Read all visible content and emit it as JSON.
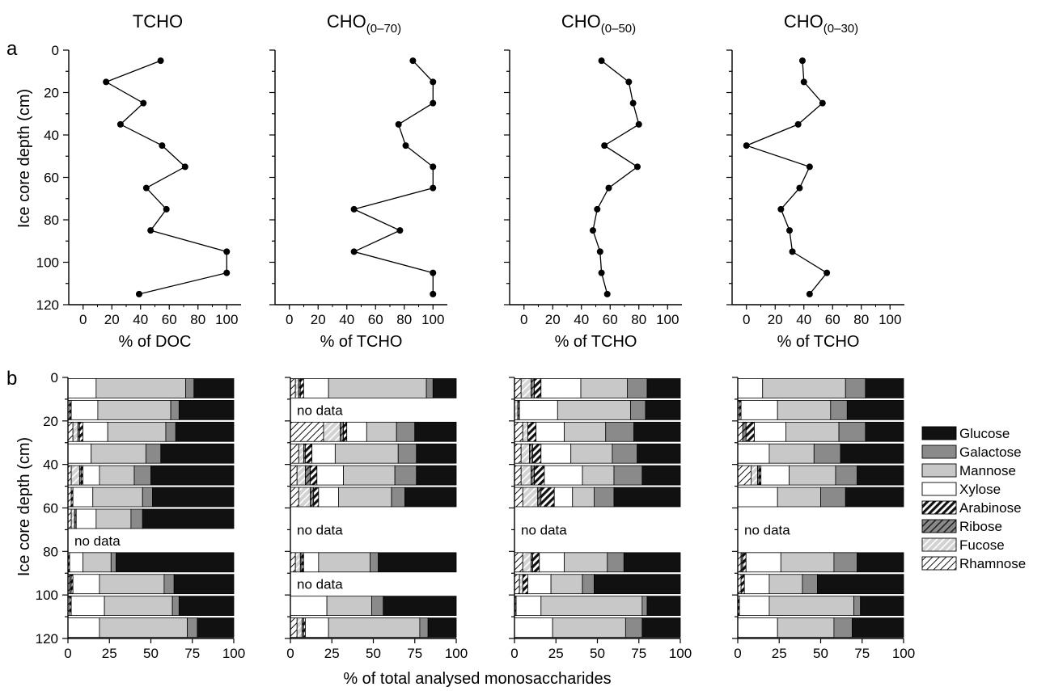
{
  "figure": {
    "panel_a_letter": "a",
    "panel_b_letter": "b",
    "y_axis_label": "Ice core depth (cm)",
    "bottom_label": "% of total analysed monosaccharides",
    "no_data_label": "no data"
  },
  "chart_data": [
    {
      "type": "line",
      "panel": "a",
      "title": "TCHO",
      "xlabel": "% of DOC",
      "ylabel": "Ice core depth (cm)",
      "xlim": [
        -10,
        110
      ],
      "ylim": [
        0,
        120
      ],
      "y_inverted": true,
      "x_ticks": [
        0,
        20,
        40,
        60,
        80,
        100
      ],
      "y_ticks": [
        0,
        20,
        40,
        60,
        80,
        100,
        120
      ],
      "x": [
        54,
        16,
        42,
        26,
        55,
        71,
        44,
        58,
        47,
        100,
        100,
        39
      ],
      "y": [
        5,
        15,
        25,
        35,
        45,
        55,
        65,
        75,
        85,
        95,
        105,
        115
      ],
      "marker": "circle"
    },
    {
      "type": "line",
      "panel": "a",
      "title": "CHO",
      "title_subscript": "(0–70)",
      "xlabel": "% of TCHO",
      "xlim": [
        -10,
        110
      ],
      "ylim": [
        0,
        120
      ],
      "y_inverted": true,
      "x_ticks": [
        0,
        20,
        40,
        60,
        80,
        100
      ],
      "x": [
        86,
        100,
        100,
        76,
        81,
        100,
        100,
        45,
        77,
        45,
        100,
        100
      ],
      "y": [
        5,
        15,
        25,
        35,
        45,
        55,
        65,
        75,
        85,
        95,
        105,
        115
      ],
      "marker": "circle"
    },
    {
      "type": "line",
      "panel": "a",
      "title": "CHO",
      "title_subscript": "(0–50)",
      "xlabel": "% of TCHO",
      "xlim": [
        -10,
        110
      ],
      "ylim": [
        0,
        120
      ],
      "y_inverted": true,
      "x_ticks": [
        0,
        20,
        40,
        60,
        80,
        100
      ],
      "x": [
        54,
        73,
        76,
        80,
        56,
        79,
        59,
        51,
        48,
        53,
        54,
        58
      ],
      "y": [
        5,
        15,
        25,
        35,
        45,
        55,
        65,
        75,
        85,
        95,
        105,
        115
      ],
      "marker": "circle"
    },
    {
      "type": "line",
      "panel": "a",
      "title": "CHO",
      "title_subscript": "(0–30)",
      "xlabel": "% of TCHO",
      "xlim": [
        -10,
        110
      ],
      "ylim": [
        0,
        120
      ],
      "y_inverted": true,
      "x_ticks": [
        0,
        20,
        40,
        60,
        80,
        100
      ],
      "x": [
        39,
        40,
        53,
        36,
        0,
        44,
        37,
        24,
        30,
        32,
        56,
        44
      ],
      "y": [
        5,
        15,
        25,
        35,
        45,
        55,
        65,
        75,
        85,
        95,
        105,
        115
      ],
      "marker": "circle"
    },
    {
      "type": "bar",
      "orientation": "horizontal",
      "stacked": true,
      "panel": "b",
      "xlim": [
        0,
        100
      ],
      "ylim": [
        0,
        120
      ],
      "y_inverted": true,
      "x_ticks": [
        0,
        25,
        50,
        75,
        100
      ],
      "y_ticks": [
        0,
        20,
        40,
        60,
        80,
        100,
        120
      ],
      "segment_order": [
        "Rhamnose",
        "Fucose",
        "Ribose",
        "Arabinose",
        "Xylose",
        "Mannose",
        "Galactose",
        "Glucose"
      ],
      "rows": [
        {
          "depth": 5,
          "values": [
            0,
            0,
            0,
            0,
            17,
            54,
            5,
            24
          ]
        },
        {
          "depth": 15,
          "values": [
            1,
            0,
            0,
            1,
            16,
            44,
            5,
            33
          ]
        },
        {
          "depth": 25,
          "values": [
            3,
            3,
            1,
            2,
            15,
            35,
            6,
            35
          ]
        },
        {
          "depth": 35,
          "values": [
            0,
            0,
            0,
            0,
            14,
            33,
            9,
            44
          ]
        },
        {
          "depth": 45,
          "values": [
            2,
            5,
            1,
            1,
            10,
            21,
            10,
            50
          ]
        },
        {
          "depth": 55,
          "values": [
            2,
            0,
            0,
            1,
            12,
            30,
            6,
            49
          ]
        },
        {
          "depth": 65,
          "values": [
            2,
            2,
            1,
            0,
            12,
            21,
            7,
            55
          ]
        },
        {
          "depth": 75,
          "no_data": true
        },
        {
          "depth": 85,
          "values": [
            0,
            0,
            0,
            1,
            8,
            17,
            3,
            71
          ]
        },
        {
          "depth": 95,
          "values": [
            1,
            0,
            1,
            1,
            16,
            39,
            6,
            36
          ]
        },
        {
          "depth": 105,
          "values": [
            1,
            0,
            0,
            1,
            20,
            41,
            4,
            33
          ]
        },
        {
          "depth": 115,
          "values": [
            0,
            0,
            0,
            0,
            19,
            53,
            6,
            22
          ]
        }
      ]
    },
    {
      "type": "bar",
      "orientation": "horizontal",
      "stacked": true,
      "panel": "b",
      "xlim": [
        0,
        100
      ],
      "ylim": [
        0,
        120
      ],
      "y_inverted": true,
      "x_ticks": [
        0,
        25,
        50,
        75,
        100
      ],
      "segment_order": [
        "Rhamnose",
        "Fucose",
        "Ribose",
        "Arabinose",
        "Xylose",
        "Mannose",
        "Galactose",
        "Glucose"
      ],
      "rows": [
        {
          "depth": 5,
          "values": [
            3,
            2,
            1,
            2,
            15,
            59,
            4,
            14
          ]
        },
        {
          "depth": 15,
          "no_data": true
        },
        {
          "depth": 25,
          "values": [
            20,
            10,
            2,
            2,
            12,
            18,
            11,
            25
          ]
        },
        {
          "depth": 35,
          "values": [
            5,
            3,
            1,
            4,
            14,
            38,
            11,
            24
          ]
        },
        {
          "depth": 45,
          "values": [
            4,
            5,
            3,
            4,
            16,
            31,
            13,
            24
          ]
        },
        {
          "depth": 55,
          "values": [
            5,
            7,
            2,
            3,
            12,
            32,
            8,
            31
          ]
        },
        {
          "depth": 65,
          "no_data": true
        },
        {
          "depth": 75,
          "no_data": true
        },
        {
          "depth": 85,
          "values": [
            3,
            3,
            1,
            1,
            9,
            31,
            5,
            47
          ]
        },
        {
          "depth": 95,
          "no_data": true
        },
        {
          "depth": 105,
          "values": [
            0,
            0,
            0,
            0,
            22,
            27,
            7,
            44
          ]
        },
        {
          "depth": 115,
          "values": [
            4,
            3,
            1,
            1,
            14,
            55,
            5,
            17
          ]
        }
      ]
    },
    {
      "type": "bar",
      "orientation": "horizontal",
      "stacked": true,
      "panel": "b",
      "xlim": [
        0,
        100
      ],
      "ylim": [
        0,
        120
      ],
      "y_inverted": true,
      "x_ticks": [
        0,
        25,
        50,
        75,
        100
      ],
      "segment_order": [
        "Rhamnose",
        "Fucose",
        "Ribose",
        "Arabinose",
        "Xylose",
        "Mannose",
        "Galactose",
        "Glucose"
      ],
      "rows": [
        {
          "depth": 5,
          "values": [
            4,
            6,
            2,
            4,
            24,
            28,
            12,
            20
          ]
        },
        {
          "depth": 15,
          "values": [
            0,
            2,
            1,
            0,
            23,
            44,
            9,
            21
          ]
        },
        {
          "depth": 25,
          "values": [
            5,
            3,
            0,
            5,
            17,
            25,
            17,
            28
          ]
        },
        {
          "depth": 35,
          "values": [
            4,
            5,
            2,
            5,
            18,
            25,
            15,
            26
          ]
        },
        {
          "depth": 45,
          "values": [
            4,
            6,
            2,
            6,
            23,
            19,
            17,
            23
          ]
        },
        {
          "depth": 55,
          "values": [
            5,
            9,
            2,
            8,
            11,
            13,
            12,
            40
          ]
        },
        {
          "depth": 65,
          "no_data": true
        },
        {
          "depth": 75,
          "no_data": true
        },
        {
          "depth": 85,
          "values": [
            5,
            5,
            1,
            4,
            15,
            26,
            10,
            34
          ]
        },
        {
          "depth": 95,
          "values": [
            3,
            2,
            0,
            3,
            14,
            19,
            7,
            52
          ]
        },
        {
          "depth": 105,
          "values": [
            0,
            0,
            1,
            0,
            15,
            61,
            3,
            20
          ]
        },
        {
          "depth": 115,
          "values": [
            0,
            0,
            0,
            0,
            23,
            44,
            10,
            23
          ]
        }
      ]
    },
    {
      "type": "bar",
      "orientation": "horizontal",
      "stacked": true,
      "panel": "b",
      "xlim": [
        0,
        100
      ],
      "ylim": [
        0,
        120
      ],
      "y_inverted": true,
      "x_ticks": [
        0,
        25,
        50,
        75,
        100
      ],
      "segment_order": [
        "Rhamnose",
        "Fucose",
        "Ribose",
        "Arabinose",
        "Xylose",
        "Mannose",
        "Galactose",
        "Glucose"
      ],
      "rows": [
        {
          "depth": 5,
          "values": [
            0,
            0,
            0,
            0,
            15,
            50,
            12,
            23
          ]
        },
        {
          "depth": 15,
          "values": [
            1,
            0,
            0,
            1,
            22,
            32,
            10,
            34
          ]
        },
        {
          "depth": 25,
          "values": [
            3,
            0,
            2,
            5,
            19,
            32,
            16,
            23
          ]
        },
        {
          "depth": 35,
          "values": [
            0,
            0,
            0,
            0,
            19,
            27,
            16,
            38
          ]
        },
        {
          "depth": 45,
          "values": [
            8,
            4,
            1,
            1,
            17,
            28,
            13,
            28
          ]
        },
        {
          "depth": 55,
          "values": [
            0,
            0,
            0,
            0,
            24,
            26,
            15,
            35
          ]
        },
        {
          "depth": 65,
          "no_data": true
        },
        {
          "depth": 75,
          "no_data": true
        },
        {
          "depth": 85,
          "values": [
            2,
            0,
            1,
            2,
            21,
            32,
            14,
            28
          ]
        },
        {
          "depth": 95,
          "values": [
            2,
            0,
            0,
            2,
            15,
            20,
            9,
            52
          ]
        },
        {
          "depth": 105,
          "values": [
            0,
            0,
            0,
            1,
            18,
            51,
            4,
            26
          ]
        },
        {
          "depth": 115,
          "values": [
            0,
            0,
            0,
            0,
            24,
            34,
            11,
            31
          ]
        }
      ]
    }
  ],
  "legend": {
    "position": "right",
    "items": [
      {
        "label": "Glucose",
        "pattern": "solid-black"
      },
      {
        "label": "Galactose",
        "pattern": "solid-dark-gray"
      },
      {
        "label": "Mannose",
        "pattern": "solid-light-gray"
      },
      {
        "label": "Xylose",
        "pattern": "solid-white"
      },
      {
        "label": "Arabinose",
        "pattern": "black-hatch"
      },
      {
        "label": "Ribose",
        "pattern": "dark-gray-hatch"
      },
      {
        "label": "Fucose",
        "pattern": "light-gray-hatch"
      },
      {
        "label": "Rhamnose",
        "pattern": "white-hatch"
      }
    ]
  },
  "colors": {
    "black": "#111111",
    "dark_gray": "#8a8a8a",
    "light_gray": "#c8c8c8",
    "white": "#ffffff"
  }
}
